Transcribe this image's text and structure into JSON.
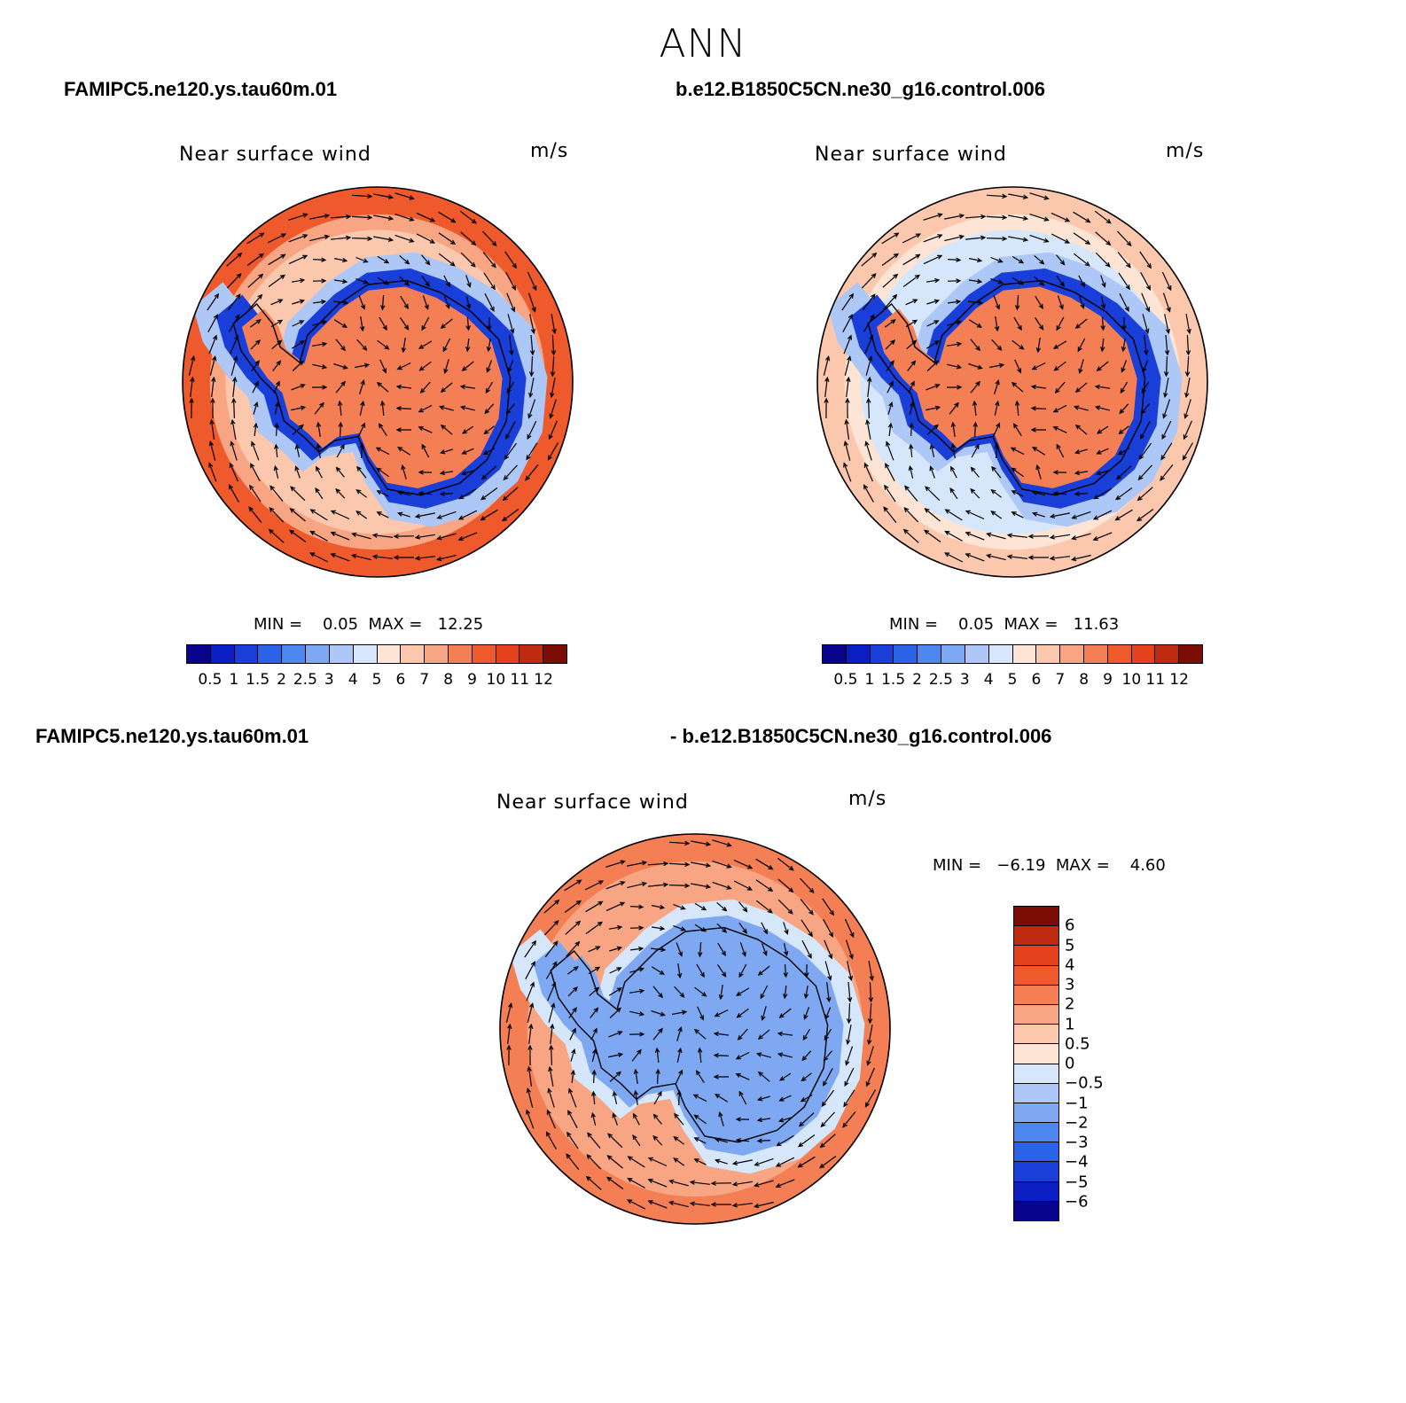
{
  "title": "ANN",
  "palette_seq": [
    "#08038c",
    "#0b1ec4",
    "#1a3fd9",
    "#2a63e8",
    "#4c86ee",
    "#7fa8f2",
    "#adc8f6",
    "#d6e6fb",
    "#fde4d4",
    "#fbc7ad",
    "#f8a584",
    "#f47f55",
    "#ef5a2c",
    "#e3421c",
    "#bf2b10",
    "#7c0c06"
  ],
  "palette_diff": [
    "#7c0c06",
    "#bf2b10",
    "#e3421c",
    "#ef5a2c",
    "#f47f55",
    "#f8a584",
    "#fbc7ad",
    "#fde4d4",
    "#d6e6fb",
    "#adc8f6",
    "#7fa8f2",
    "#4c86ee",
    "#2a63e8",
    "#1a3fd9",
    "#0b1ec4",
    "#08038c"
  ],
  "panels": [
    {
      "case_label": "FAMIPC5.ne120.ys.tau60m.01",
      "plot_title": "Near surface wind",
      "units": "m/s",
      "minmax": "MIN =    0.05  MAX =   12.25",
      "colorbar_labels": [
        "0.5",
        "1",
        "1.5",
        "2",
        "2.5",
        "3",
        "4",
        "5",
        "6",
        "7",
        "8",
        "9",
        "10",
        "11",
        "12"
      ],
      "field": {
        "ocean_outer": 9.5,
        "ocean_mid": 6.5,
        "coast_band": 1.5,
        "interior": 8.5
      }
    },
    {
      "case_label": "b.e12.B1850C5CN.ne30_g16.control.006",
      "plot_title": "Near surface wind",
      "units": "m/s",
      "minmax": "MIN =    0.05  MAX =   11.63",
      "colorbar_labels": [
        "0.5",
        "1",
        "1.5",
        "2",
        "2.5",
        "3",
        "4",
        "5",
        "6",
        "7",
        "8",
        "9",
        "10",
        "11",
        "12"
      ],
      "field": {
        "ocean_outer": 6.5,
        "ocean_mid": 4.5,
        "coast_band": 1.5,
        "interior": 9.0
      }
    },
    {
      "case_label": "FAMIPC5.ne120.ys.tau60m.01",
      "case_label_2": "- b.e12.B1850C5CN.ne30_g16.control.006",
      "plot_title": "Near surface wind",
      "units": "m/s",
      "minmax": "MIN =   −6.19  MAX =    4.60",
      "colorbar_labels": [
        "6",
        "5",
        "4",
        "3",
        "2",
        "1",
        "0.5",
        "0",
        "−0.5",
        "−1",
        "−2",
        "−3",
        "−4",
        "−5",
        "−6"
      ],
      "field": {
        "ocean_outer": 2.5,
        "ocean_mid": 1.5,
        "coast_band": -1.0,
        "interior": -1.5
      }
    }
  ]
}
